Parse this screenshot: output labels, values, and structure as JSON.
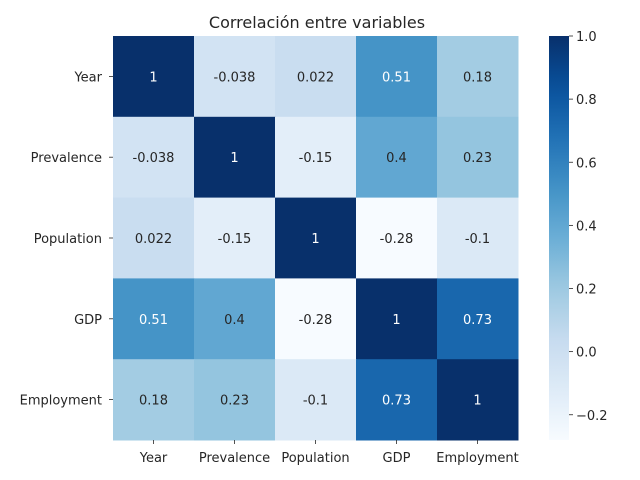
{
  "chart_data": {
    "type": "heatmap",
    "title": "Correlación entre variables",
    "x_categories": [
      "Year",
      "Prevalence",
      "Population",
      "GDP",
      "Employment"
    ],
    "y_categories": [
      "Year",
      "Prevalence",
      "Population",
      "GDP",
      "Employment"
    ],
    "values": [
      [
        1,
        -0.038,
        0.022,
        0.51,
        0.18
      ],
      [
        -0.038,
        1,
        -0.15,
        0.4,
        0.23
      ],
      [
        0.022,
        -0.15,
        1,
        -0.28,
        -0.1
      ],
      [
        0.51,
        0.4,
        -0.28,
        1,
        0.73
      ],
      [
        0.18,
        0.23,
        -0.1,
        0.73,
        1
      ]
    ],
    "value_labels": [
      [
        "1",
        "-0.038",
        "0.022",
        "0.51",
        "0.18"
      ],
      [
        "-0.038",
        "1",
        "-0.15",
        "0.4",
        "0.23"
      ],
      [
        "0.022",
        "-0.15",
        "1",
        "-0.28",
        "-0.1"
      ],
      [
        "0.51",
        "0.4",
        "-0.28",
        "1",
        "0.73"
      ],
      [
        "0.18",
        "0.23",
        "-0.1",
        "0.73",
        "1"
      ]
    ],
    "colormap": "Blues",
    "vmin": -0.28,
    "vmax": 1,
    "colorbar_ticks": [
      1.0,
      0.8,
      0.6,
      0.4,
      0.2,
      0.0,
      -0.2
    ],
    "colorbar_tick_labels": [
      "1.0",
      "0.8",
      "0.6",
      "0.4",
      "0.2",
      "0.0",
      "−0.2"
    ],
    "colors": {
      "low": "#f7fbff",
      "high": "#08306b",
      "text_dark": "#262626",
      "text_light": "#ffffff"
    }
  }
}
